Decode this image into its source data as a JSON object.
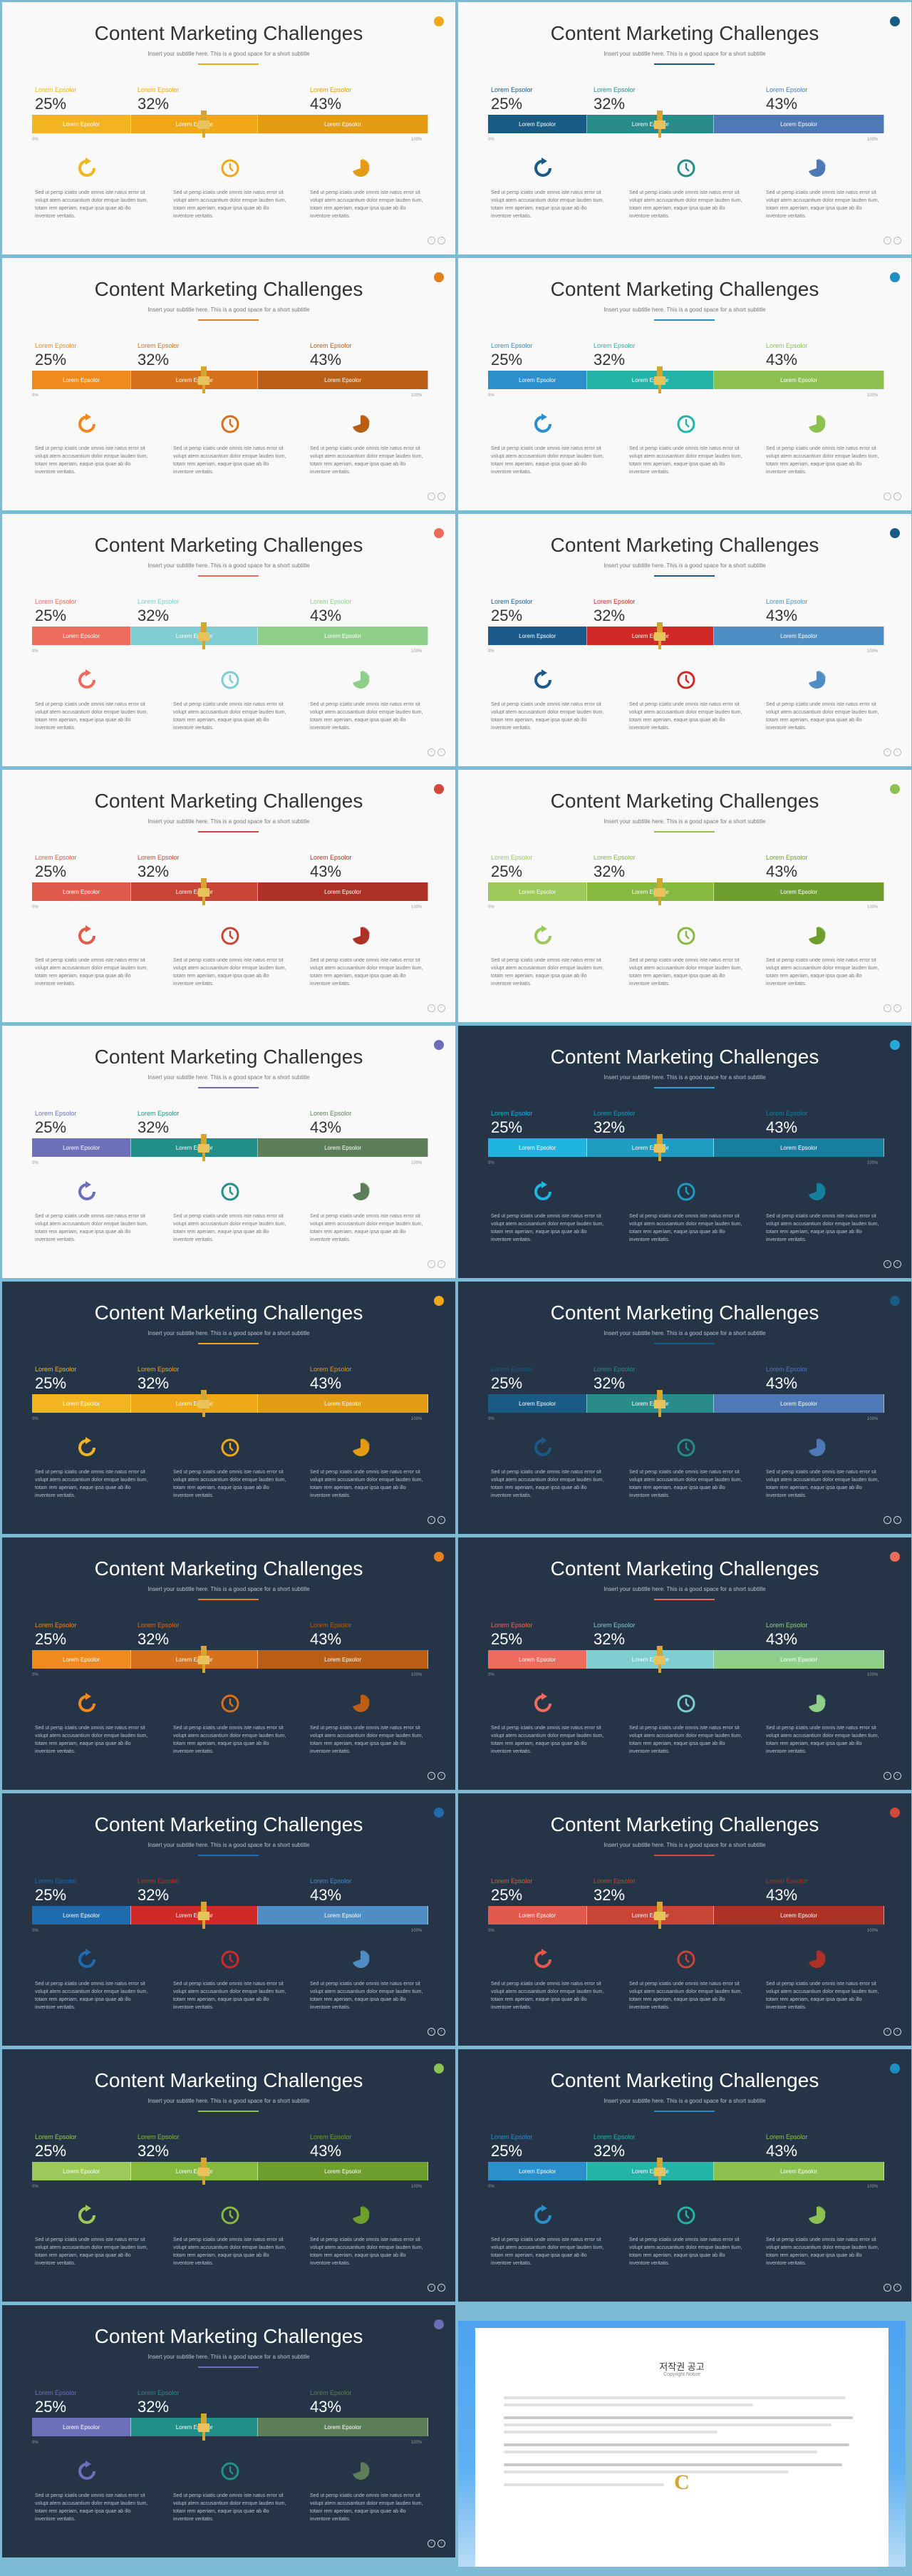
{
  "slide": {
    "title": "Content Marketing Challenges",
    "subtitle": "Insert your subtitle here. This is a good space for a short subtitle",
    "stat_label": "Lorem Epsolor",
    "stats": [
      "25%",
      "32%",
      "43%"
    ],
    "segment_label": "Lorem Epsolor",
    "axis_left": "0%",
    "axis_right": "100%",
    "paragraph": "Sed ut persp iciatis unde omnis iste natus error sit volupt atem accusantium dolor emque lauden tium, totam rem aperiam, eaque ipsa quae ab illo inventore veritatis.",
    "icons": [
      "refresh-icon",
      "clock-icon",
      "pie-chart-icon"
    ],
    "segment_shares": [
      0.25,
      0.32,
      0.43
    ]
  },
  "slides": [
    {
      "theme": "light",
      "accent": "#f0a818",
      "colors": [
        "#f2b521",
        "#f0a818",
        "#e39c14"
      ]
    },
    {
      "theme": "light",
      "accent": "#1a5b86",
      "colors": [
        "#1a5b86",
        "#2a8c8a",
        "#4e79b6"
      ]
    },
    {
      "theme": "light",
      "accent": "#e5801d",
      "colors": [
        "#f08a1e",
        "#d7701a",
        "#b95e14"
      ]
    },
    {
      "theme": "light",
      "accent": "#1e8fc5",
      "colors": [
        "#2b8fcb",
        "#25b3a8",
        "#8cc152"
      ]
    },
    {
      "theme": "light",
      "accent": "#ec6b5d",
      "colors": [
        "#ee6c5e",
        "#7fcdd0",
        "#8ed089"
      ]
    },
    {
      "theme": "light",
      "accent": "#1c5a8a",
      "colors": [
        "#1d5a8c",
        "#cf2a27",
        "#4e8ec4"
      ]
    },
    {
      "theme": "light",
      "accent": "#d2483c",
      "colors": [
        "#e15a4c",
        "#c84536",
        "#ad3226"
      ]
    },
    {
      "theme": "light",
      "accent": "#8cc152",
      "colors": [
        "#9cc95a",
        "#86b93f",
        "#6e9f2e"
      ]
    },
    {
      "theme": "light",
      "accent": "#6b6fb8",
      "colors": [
        "#6e6fb9",
        "#219089",
        "#5c7e58"
      ]
    },
    {
      "theme": "dark",
      "accent": "#23a9d6",
      "colors": [
        "#1fb5de",
        "#1e9cc1",
        "#167fa0"
      ]
    },
    {
      "theme": "dark",
      "accent": "#f0a818",
      "colors": [
        "#f2b521",
        "#f0a818",
        "#e39c14"
      ]
    },
    {
      "theme": "dark",
      "accent": "#1a5b86",
      "colors": [
        "#1a5b86",
        "#2a8c8a",
        "#4e79b6"
      ]
    },
    {
      "theme": "dark",
      "accent": "#e5801d",
      "colors": [
        "#f08a1e",
        "#d7701a",
        "#b95e14"
      ]
    },
    {
      "theme": "dark",
      "accent": "#ec6b5d",
      "colors": [
        "#ee6c5e",
        "#7fcdd0",
        "#8ed089"
      ]
    },
    {
      "theme": "dark",
      "accent": "#1e6bb0",
      "colors": [
        "#1e6bb0",
        "#cf2a27",
        "#4e8ec4"
      ]
    },
    {
      "theme": "dark",
      "accent": "#d2483c",
      "colors": [
        "#e15a4c",
        "#c84536",
        "#ad3226"
      ]
    },
    {
      "theme": "dark",
      "accent": "#8cc152",
      "colors": [
        "#9cc95a",
        "#86b93f",
        "#6e9f2e"
      ]
    },
    {
      "theme": "dark",
      "accent": "#1e8fc5",
      "colors": [
        "#2b8fcb",
        "#25b3a8",
        "#8cc152"
      ]
    },
    {
      "theme": "dark",
      "accent": "#6b6fb8",
      "colors": [
        "#6e6fb9",
        "#219089",
        "#5c7e58"
      ]
    }
  ],
  "copyright": {
    "title": "저작권 공고",
    "subtitle": "Copyright Notice"
  }
}
